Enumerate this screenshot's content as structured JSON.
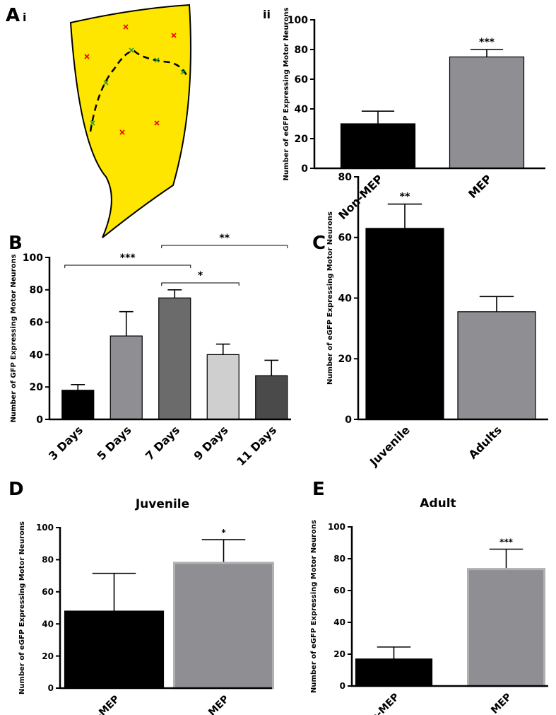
{
  "diagram": {
    "panel": "A",
    "subpanel": "i"
  },
  "chart_data": [
    {
      "type": "bar",
      "panel": "ii",
      "y_label": "Number of eGFP Expressing Motor Neurons",
      "categories": [
        "Non-MEP",
        "MEP"
      ],
      "values": [
        30,
        75
      ],
      "errors": [
        8.5,
        5
      ],
      "colors": [
        "#000000",
        "#8e8e93"
      ],
      "ylim": [
        0,
        100
      ],
      "yticks": [
        0,
        20,
        40,
        60,
        80,
        100
      ],
      "annotations": [
        {
          "category": "MEP",
          "label": "***"
        }
      ]
    },
    {
      "type": "bar",
      "panel": "B",
      "y_label": "Number of GFP Expressing Motor Neurons",
      "categories": [
        "3 Days",
        "5 Days",
        "7 Days",
        "9 Days",
        "11 Days"
      ],
      "values": [
        18,
        51.5,
        75,
        40,
        27
      ],
      "errors": [
        3.5,
        15,
        5,
        6.5,
        9.5
      ],
      "colors": [
        "#000000",
        "#8e8e93",
        "#6b6b6b",
        "#cfcfcf",
        "#4a4a4a"
      ],
      "ylim": [
        0,
        100
      ],
      "yticks": [
        0,
        20,
        40,
        60,
        80,
        100
      ],
      "brackets": [
        {
          "from": "3 Days",
          "to": "7 Days",
          "label": "***"
        },
        {
          "from": "7 Days",
          "to": "9 Days",
          "label": "*"
        },
        {
          "from": "7 Days",
          "to": "11 Days",
          "label": "**"
        }
      ]
    },
    {
      "type": "bar",
      "panel": "C",
      "y_label": "Number of eGFP Expressing Motor Neurons",
      "categories": [
        "Juvenile",
        "Adults"
      ],
      "values": [
        63,
        35.5
      ],
      "errors": [
        8,
        5
      ],
      "colors": [
        "#000000",
        "#8e8e93"
      ],
      "ylim": [
        0,
        80
      ],
      "yticks": [
        0,
        20,
        40,
        60,
        80
      ],
      "annotations": [
        {
          "category": "Juvenile",
          "label": "**"
        }
      ]
    },
    {
      "type": "bar",
      "panel": "D",
      "title": "Juvenile",
      "y_label": "Number of eGFP Expressing Motor Neurons",
      "categories": [
        "Non-MEP",
        "MEP"
      ],
      "values": [
        48,
        78
      ],
      "errors": [
        23.5,
        14.5
      ],
      "colors": [
        "#000000",
        "#8e8e93"
      ],
      "ylim": [
        0,
        100
      ],
      "yticks": [
        0,
        20,
        40,
        60,
        80,
        100
      ],
      "annotations": [
        {
          "category": "MEP",
          "label": "*"
        }
      ]
    },
    {
      "type": "bar",
      "panel": "E",
      "title": "Adult",
      "y_label": "Number of eGFP Expressing Motor Neurons",
      "categories": [
        "Non-MEP",
        "MEP"
      ],
      "values": [
        17,
        73.5
      ],
      "errors": [
        7.5,
        12.5
      ],
      "colors": [
        "#000000",
        "#8e8e93"
      ],
      "ylim": [
        0,
        100
      ],
      "yticks": [
        0,
        20,
        40,
        60,
        80,
        100
      ],
      "annotations": [
        {
          "category": "MEP",
          "label": "***"
        }
      ]
    }
  ]
}
